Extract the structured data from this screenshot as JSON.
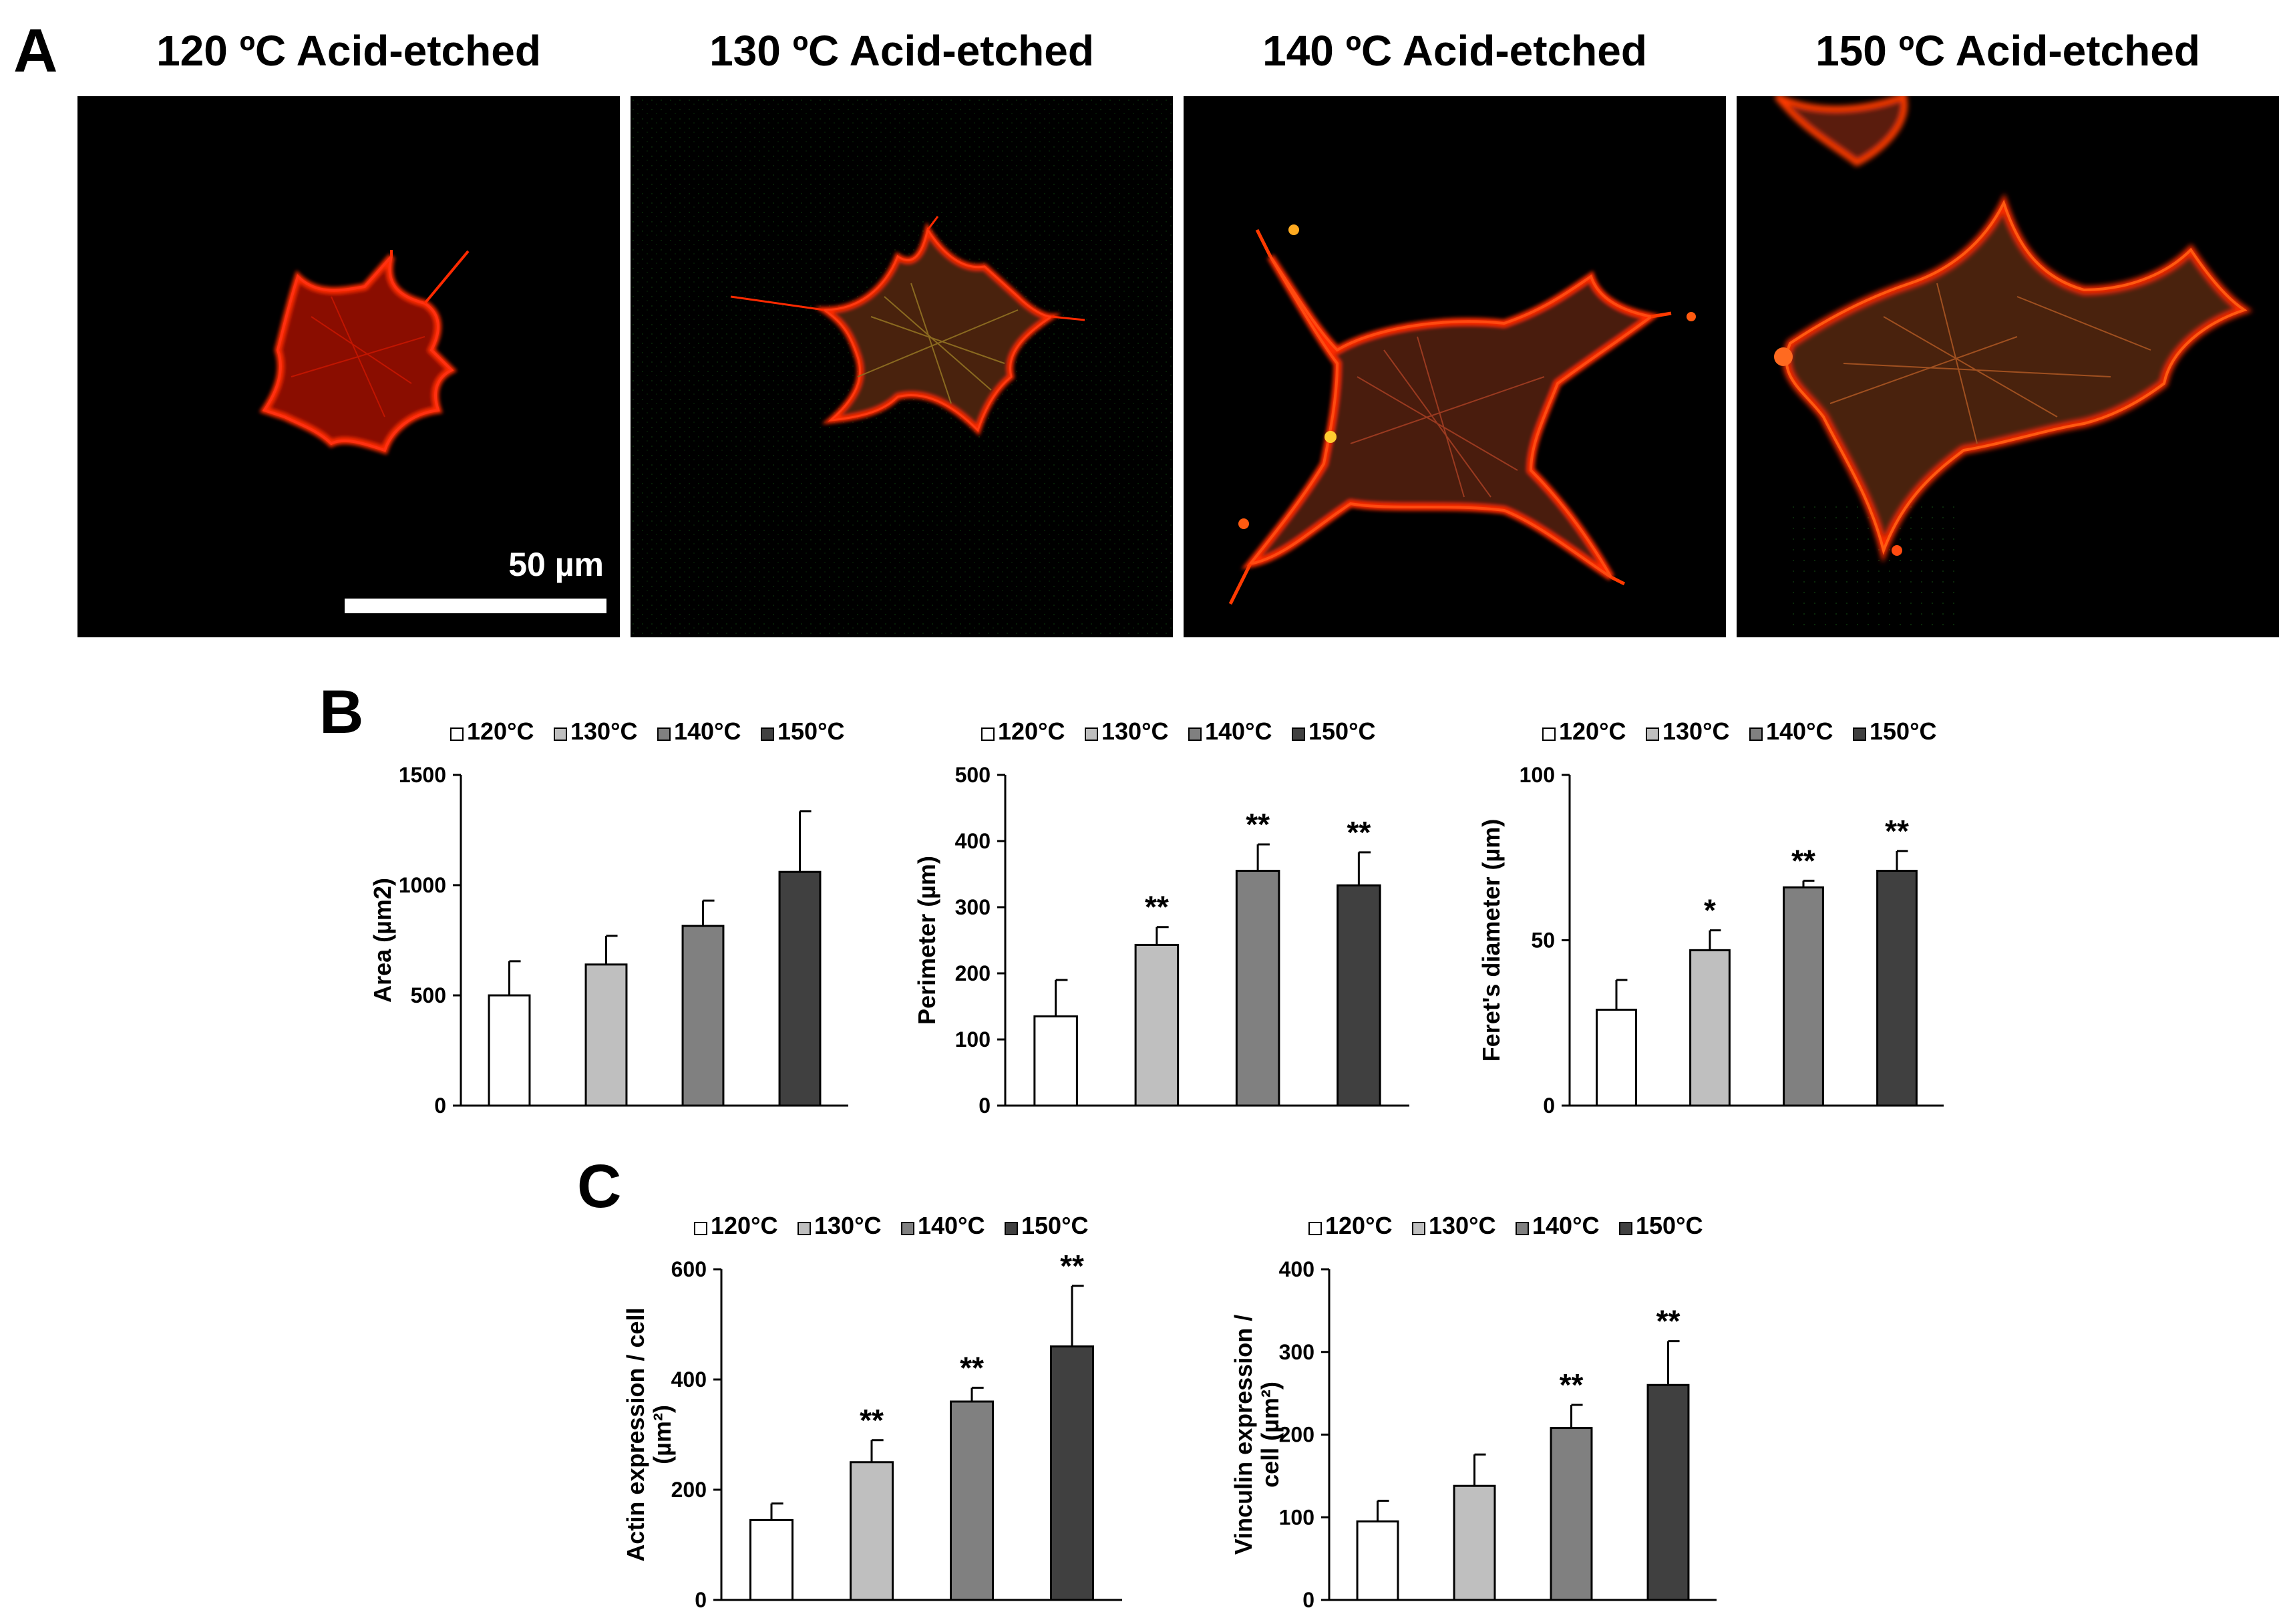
{
  "panels": {
    "a": "A",
    "b": "B",
    "c": "C"
  },
  "micrographs": [
    {
      "title": "120 ºC Acid-etched"
    },
    {
      "title": "130 ºC Acid-etched"
    },
    {
      "title": "140 ºC Acid-etched"
    },
    {
      "title": "150 ºC Acid-etched"
    }
  ],
  "scale_bar_label": "50 µm",
  "colors": {
    "actin": "#ff2a00",
    "vinculin": "#1f8a1f",
    "120": "#ffffff",
    "130": "#bfbfbf",
    "140": "#808080",
    "150": "#404040"
  },
  "chart_data": [
    {
      "type": "bar",
      "panel": "B",
      "ylabel": "Area (µm2)",
      "ylim": [
        0,
        1500
      ],
      "yticks": [
        0,
        500,
        1000,
        1500
      ],
      "categories": [
        "120°C",
        "130°C",
        "140°C",
        "150°C"
      ],
      "values": [
        500,
        640,
        815,
        1060
      ],
      "errors": [
        155,
        130,
        115,
        275
      ],
      "significance": [
        "",
        "",
        "",
        ""
      ],
      "legend_placement": "top"
    },
    {
      "type": "bar",
      "panel": "B",
      "ylabel": "Perimeter (µm)",
      "ylim": [
        0,
        500
      ],
      "yticks": [
        0,
        100,
        200,
        300,
        400,
        500
      ],
      "categories": [
        "120°C",
        "130°C",
        "140°C",
        "150°C"
      ],
      "values": [
        135,
        243,
        355,
        333
      ],
      "errors": [
        55,
        27,
        40,
        50
      ],
      "significance": [
        "",
        "**",
        "**",
        "**"
      ],
      "legend_placement": "top"
    },
    {
      "type": "bar",
      "panel": "B",
      "ylabel": "Feret's diameter (µm)",
      "ylim": [
        0,
        100
      ],
      "yticks": [
        0,
        50,
        100
      ],
      "categories": [
        "120°C",
        "130°C",
        "140°C",
        "150°C"
      ],
      "values": [
        29,
        47,
        66,
        71
      ],
      "errors": [
        9,
        6,
        2,
        6
      ],
      "significance": [
        "",
        "*",
        "**",
        "**"
      ],
      "legend_placement": "top"
    },
    {
      "type": "bar",
      "panel": "C",
      "ylabel": "Actin expression / cell (µm²)",
      "ylim": [
        0,
        600
      ],
      "yticks": [
        0,
        200,
        400,
        600
      ],
      "categories": [
        "120°C",
        "130°C",
        "140°C",
        "150°C"
      ],
      "values": [
        145,
        250,
        360,
        460
      ],
      "errors": [
        30,
        40,
        25,
        110
      ],
      "significance": [
        "",
        "**",
        "**",
        "**"
      ],
      "legend_placement": "top"
    },
    {
      "type": "bar",
      "panel": "C",
      "ylabel": "Vinculin expression / cell (µm²)",
      "ylim": [
        0,
        400
      ],
      "yticks": [
        0,
        100,
        200,
        300,
        400
      ],
      "categories": [
        "120°C",
        "130°C",
        "140°C",
        "150°C"
      ],
      "values": [
        95,
        138,
        208,
        260
      ],
      "errors": [
        25,
        38,
        28,
        53
      ],
      "significance": [
        "",
        "",
        "**",
        "**"
      ],
      "legend_placement": "top"
    }
  ]
}
